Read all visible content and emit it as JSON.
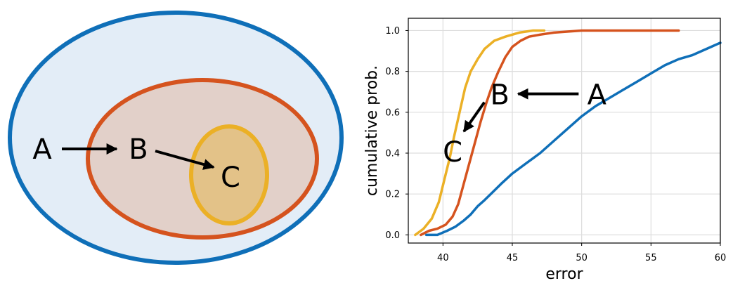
{
  "diagram": {
    "outer_label": "A",
    "middle_label": "B",
    "inner_label": "C",
    "colors": {
      "outer_stroke": "#0f6fb8",
      "outer_fill": "#e3edf7",
      "middle_stroke": "#d5531e",
      "middle_fill": "#e2d0c9",
      "inner_stroke": "#ebb026",
      "inner_fill": "#e3c288",
      "arrow": "#000000"
    }
  },
  "chart_data": {
    "type": "line",
    "title": "",
    "xlabel": "error",
    "ylabel": "cumulative prob.",
    "xlim": [
      37.5,
      60
    ],
    "ylim": [
      -0.04,
      1.06
    ],
    "xticks": [
      40,
      45,
      50,
      55,
      60
    ],
    "yticks": [
      0.0,
      0.2,
      0.4,
      0.6,
      0.8,
      1.0
    ],
    "xtick_labels": [
      "40",
      "45",
      "50",
      "55",
      "60"
    ],
    "ytick_labels": [
      "0.0",
      "0.2",
      "0.4",
      "0.6",
      "0.8",
      "1.0"
    ],
    "grid": true,
    "series": [
      {
        "name": "A",
        "color": "#0f6fb8",
        "x": [
          38.8,
          39.6,
          40.3,
          40.9,
          41.5,
          42.0,
          42.5,
          43.0,
          43.6,
          44.2,
          45.0,
          46.0,
          47.0,
          48.0,
          49.0,
          50.0,
          51.0,
          52.0,
          53.0,
          54.0,
          55.0,
          56.0,
          57.0,
          58.0,
          59.0,
          60.0
        ],
        "y": [
          0.0,
          0.0,
          0.02,
          0.04,
          0.07,
          0.1,
          0.14,
          0.17,
          0.21,
          0.25,
          0.3,
          0.35,
          0.4,
          0.46,
          0.52,
          0.58,
          0.63,
          0.67,
          0.71,
          0.75,
          0.79,
          0.83,
          0.86,
          0.88,
          0.91,
          0.94
        ]
      },
      {
        "name": "B",
        "color": "#d5531e",
        "x": [
          38.4,
          39.0,
          39.6,
          40.2,
          40.7,
          41.1,
          41.5,
          41.9,
          42.3,
          42.7,
          43.1,
          43.5,
          44.0,
          44.5,
          45.0,
          45.6,
          46.2,
          47.0,
          48.0,
          50.0,
          53.0,
          57.0
        ],
        "y": [
          0.0,
          0.02,
          0.03,
          0.05,
          0.09,
          0.15,
          0.25,
          0.35,
          0.45,
          0.55,
          0.64,
          0.72,
          0.8,
          0.87,
          0.92,
          0.95,
          0.97,
          0.98,
          0.99,
          1.0,
          1.0,
          1.0
        ]
      },
      {
        "name": "C",
        "color": "#ebb026",
        "x": [
          38.0,
          38.6,
          39.2,
          39.7,
          40.1,
          40.5,
          40.8,
          41.2,
          41.6,
          42.0,
          42.5,
          43.0,
          43.7,
          44.5,
          45.5,
          46.5,
          47.3
        ],
        "y": [
          0.0,
          0.03,
          0.08,
          0.16,
          0.27,
          0.38,
          0.48,
          0.6,
          0.72,
          0.8,
          0.86,
          0.91,
          0.95,
          0.97,
          0.99,
          1.0,
          1.0
        ]
      }
    ],
    "annotations": [
      {
        "text": "B",
        "x": 44.1,
        "y": 0.69
      },
      {
        "text": "A",
        "x": 51.1,
        "y": 0.69
      },
      {
        "text": "C",
        "x": 40.7,
        "y": 0.41
      }
    ]
  }
}
